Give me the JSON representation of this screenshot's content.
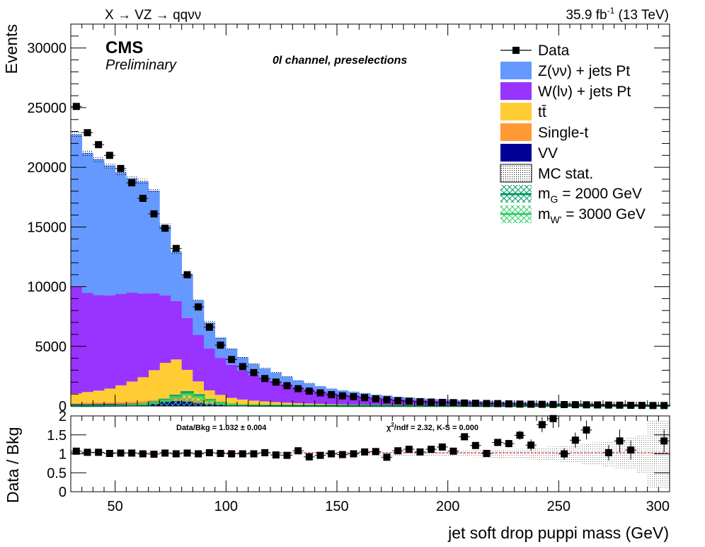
{
  "header": {
    "process": "X → VZ → qqνν",
    "lumi": "35.9 fb",
    "lumi_sup": "-1",
    "energy": "(13 TeV)"
  },
  "labels": {
    "cms": "CMS",
    "preliminary": "Preliminary",
    "channel": "0l channel, preselections",
    "ylabel_top": "Events",
    "ylabel_bottom": "Data / Bkg",
    "xlabel": "jet soft drop puppi mass (GeV)",
    "ratio_text": "Data/Bkg = 1.032 ± 0.004",
    "chi2_pre": "χ",
    "chi2_sup": "2",
    "chi2_post": "/ndf = 2.32,   K-S = 0.000"
  },
  "legend": {
    "data": "Data",
    "z": "Z(νν) + jets Pt",
    "w": "W(lν) + jets Pt",
    "tt": "tt̄",
    "st": "Single-t",
    "vv": "VV",
    "mc": "MC stat.",
    "sig1_pre": "m",
    "sig1_sub": "G",
    "sig1_post": " = 2000 GeV",
    "sig2_pre": "m",
    "sig2_sub": "W'",
    "sig2_post": " = 3000 GeV"
  },
  "chart_data": {
    "type": "bar",
    "stacked": true,
    "xlabel": "jet soft drop puppi mass (GeV)",
    "ylabel": "Events",
    "xlim": [
      30,
      300
    ],
    "ylim": [
      0,
      32000
    ],
    "ratio_ylim": [
      0,
      2
    ],
    "bin_width": 5,
    "x": [
      32.5,
      37.5,
      42.5,
      47.5,
      52.5,
      57.5,
      62.5,
      67.5,
      72.5,
      77.5,
      82.5,
      87.5,
      92.5,
      97.5,
      102.5,
      107.5,
      112.5,
      117.5,
      122.5,
      127.5,
      132.5,
      137.5,
      142.5,
      147.5,
      152.5,
      157.5,
      162.5,
      167.5,
      172.5,
      177.5,
      182.5,
      187.5,
      192.5,
      197.5,
      202.5,
      207.5,
      212.5,
      217.5,
      222.5,
      227.5,
      232.5,
      237.5,
      242.5,
      247.5,
      252.5,
      257.5,
      262.5,
      267.5,
      272.5,
      277.5,
      282.5,
      287.5,
      292.5,
      297.5
    ],
    "series": [
      {
        "name": "VV",
        "color": "#000099",
        "values": [
          150,
          160,
          170,
          180,
          190,
          200,
          230,
          280,
          350,
          420,
          380,
          260,
          160,
          110,
          80,
          60,
          50,
          40,
          35,
          30,
          25,
          22,
          20,
          18,
          16,
          14,
          12,
          10,
          9,
          8,
          7,
          6,
          5,
          5,
          4,
          4,
          3,
          3,
          3,
          2,
          2,
          2,
          2,
          2,
          1,
          1,
          1,
          1,
          1,
          1,
          1,
          1,
          1,
          1
        ]
      },
      {
        "name": "Single-t",
        "color": "#ff9933",
        "values": [
          100,
          110,
          120,
          130,
          140,
          150,
          180,
          220,
          260,
          280,
          250,
          200,
          150,
          120,
          100,
          80,
          70,
          60,
          50,
          45,
          40,
          35,
          30,
          25,
          22,
          20,
          18,
          15,
          13,
          12,
          10,
          9,
          8,
          7,
          6,
          5,
          5,
          4,
          4,
          3,
          3,
          3,
          2,
          2,
          2,
          2,
          1,
          1,
          1,
          1,
          1,
          1,
          1,
          1
        ]
      },
      {
        "name": "tt̄",
        "color": "#ffcc33",
        "values": [
          800,
          900,
          1000,
          1150,
          1400,
          1700,
          2000,
          2500,
          3000,
          3200,
          2400,
          1600,
          1000,
          700,
          500,
          400,
          330,
          280,
          240,
          200,
          170,
          150,
          130,
          110,
          100,
          90,
          80,
          70,
          60,
          50,
          45,
          40,
          35,
          30,
          28,
          25,
          22,
          20,
          18,
          15,
          13,
          12,
          10,
          9,
          8,
          7,
          6,
          5,
          5,
          4,
          4,
          3,
          3,
          3
        ]
      },
      {
        "name": "W(lν) + jets Pt",
        "color": "#9933ff",
        "values": [
          9000,
          8300,
          8000,
          7800,
          7650,
          7450,
          7000,
          6450,
          5650,
          4900,
          4350,
          3900,
          3500,
          3100,
          2770,
          2430,
          2150,
          1950,
          1760,
          1560,
          1380,
          1220,
          1080,
          950,
          860,
          780,
          700,
          630,
          570,
          520,
          480,
          440,
          410,
          380,
          350,
          330,
          300,
          280,
          260,
          240,
          220,
          200,
          190,
          180,
          170,
          160,
          150,
          140,
          130,
          120,
          110,
          100,
          90,
          80
        ]
      },
      {
        "name": "Z(νν) + jets Pt",
        "color": "#6699ff",
        "values": [
          12700,
          11750,
          11400,
          10900,
          10200,
          9600,
          9400,
          8600,
          5850,
          4100,
          3600,
          2900,
          2200,
          1700,
          1350,
          1120,
          930,
          810,
          710,
          620,
          540,
          470,
          410,
          360,
          320,
          280,
          250,
          220,
          200,
          180,
          160,
          150,
          140,
          130,
          120,
          110,
          100,
          95,
          90,
          85,
          80,
          75,
          70,
          65,
          60,
          55,
          50,
          48,
          46,
          44,
          42,
          40,
          38,
          36
        ]
      }
    ],
    "data": {
      "name": "Data",
      "values": [
        25100,
        22900,
        21900,
        21000,
        19900,
        18700,
        17400,
        16100,
        14900,
        13200,
        11000,
        8300,
        6600,
        5100,
        3900,
        3300,
        2800,
        2300,
        2000,
        1700,
        1450,
        1250,
        1100,
        950,
        850,
        780,
        700,
        600,
        520,
        450,
        400,
        360,
        330,
        300,
        280,
        250,
        230,
        210,
        200,
        180,
        160,
        150,
        140,
        130,
        120,
        110,
        100,
        90,
        80,
        70,
        60,
        50,
        40,
        40
      ]
    },
    "mc_stat_unc": [
      300,
      280,
      260,
      250,
      240,
      230,
      220,
      200,
      180,
      160,
      150,
      130,
      110,
      95,
      80,
      70,
      60,
      55,
      50,
      45,
      40,
      38,
      35,
      32,
      30,
      28,
      26,
      24,
      22,
      20,
      20,
      19,
      18,
      17,
      16,
      16,
      15,
      15,
      14,
      14,
      14,
      13,
      13,
      13,
      12,
      12,
      12,
      12,
      12,
      12,
      12,
      12,
      12,
      12
    ],
    "signals": [
      {
        "name": "m_G = 2000 GeV",
        "color": "#009966",
        "values": [
          0,
          5,
          15,
          30,
          50,
          80,
          150,
          300,
          520,
          850,
          1150,
          900,
          500,
          250,
          120,
          60,
          40,
          30,
          25,
          20,
          18,
          16,
          14,
          12,
          10,
          10,
          9,
          8,
          8,
          7,
          7,
          6,
          6,
          5,
          5,
          5,
          4,
          4,
          4,
          4,
          3,
          3,
          3,
          3,
          3,
          3,
          2,
          2,
          2,
          2,
          2,
          2,
          2,
          2
        ]
      },
      {
        "name": "m_W' = 3000 GeV",
        "color": "#33cc66",
        "values": [
          0,
          5,
          12,
          25,
          45,
          70,
          130,
          260,
          460,
          760,
          1000,
          800,
          450,
          220,
          110,
          60,
          45,
          35,
          30,
          25,
          22,
          20,
          18,
          16,
          15,
          14,
          13,
          12,
          11,
          10,
          10,
          9,
          9,
          8,
          8,
          8,
          7,
          7,
          7,
          7,
          6,
          6,
          6,
          6,
          6,
          6,
          5,
          5,
          5,
          5,
          5,
          5,
          5,
          5
        ]
      }
    ],
    "ratio": {
      "values": [
        1.07,
        1.04,
        1.04,
        1.01,
        1.02,
        1.02,
        1.0,
        0.99,
        1.02,
        1.0,
        1.02,
        1.0,
        1.03,
        1.01,
        1.0,
        1.0,
        1.0,
        1.03,
        0.97,
        0.96,
        1.08,
        0.92,
        0.96,
        1.0,
        0.98,
        1.0,
        1.05,
        1.06,
        0.91,
        1.08,
        1.12,
        1.05,
        1.12,
        1.18,
        1.07,
        1.45,
        1.22,
        1.01,
        1.3,
        1.27,
        1.49,
        1.23,
        1.77,
        1.93,
        1.0,
        1.36,
        1.63,
        null,
        1.03,
        1.34,
        1.1,
        null,
        null,
        1.34
      ],
      "errors": [
        0.01,
        0.01,
        0.01,
        0.01,
        0.01,
        0.01,
        0.01,
        0.01,
        0.01,
        0.01,
        0.01,
        0.01,
        0.01,
        0.01,
        0.02,
        0.02,
        0.02,
        0.02,
        0.02,
        0.02,
        0.03,
        0.03,
        0.03,
        0.03,
        0.04,
        0.04,
        0.04,
        0.04,
        0.05,
        0.05,
        0.05,
        0.06,
        0.06,
        0.06,
        0.07,
        0.07,
        0.08,
        0.08,
        0.09,
        0.1,
        0.12,
        0.15,
        0.2,
        0.25,
        0.15,
        0.2,
        0.25,
        null,
        0.2,
        0.3,
        0.25,
        null,
        null,
        0.3
      ],
      "mc_unc": [
        0.012,
        0.012,
        0.012,
        0.012,
        0.012,
        0.012,
        0.013,
        0.013,
        0.013,
        0.013,
        0.014,
        0.015,
        0.016,
        0.018,
        0.02,
        0.021,
        0.022,
        0.024,
        0.026,
        0.028,
        0.03,
        0.032,
        0.034,
        0.036,
        0.038,
        0.04,
        0.042,
        0.045,
        0.048,
        0.05,
        0.055,
        0.06,
        0.065,
        0.07,
        0.075,
        0.08,
        0.09,
        0.1,
        0.11,
        0.12,
        0.13,
        0.15,
        0.17,
        0.19,
        0.21,
        0.24,
        0.27,
        0.3,
        0.34,
        0.38,
        0.42,
        0.5,
        0.9,
        0.9
      ],
      "reference": 1.0,
      "xticks": [
        50,
        100,
        150,
        200,
        250,
        300
      ],
      "yticks": [
        0,
        0.5,
        1,
        1.5,
        2
      ],
      "ytick_labels": [
        "0",
        "0.5",
        "1",
        "1.5",
        "2"
      ]
    },
    "yticks": [
      0,
      5000,
      10000,
      15000,
      20000,
      25000,
      30000
    ],
    "ytick_labels": [
      "0",
      "5000",
      "10000",
      "15000",
      "20000",
      "25000",
      "30000"
    ]
  }
}
